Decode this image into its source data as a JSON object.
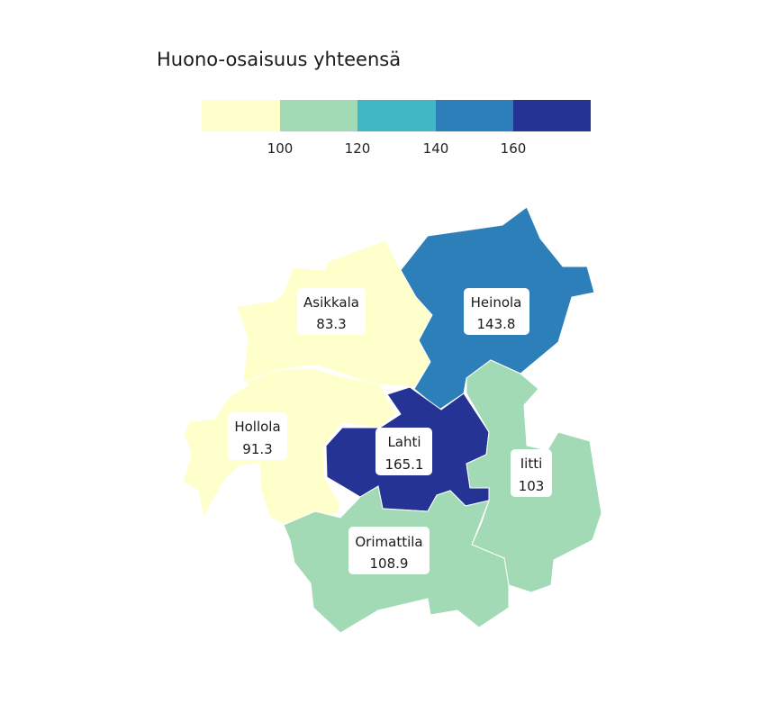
{
  "title": "Huono-osaisuus yhteensä",
  "legend": {
    "colors": [
      "#ffffcc",
      "#a1dab4",
      "#41b6c4",
      "#2c7fb8",
      "#253494"
    ],
    "ticks": [
      "100",
      "120",
      "140",
      "160"
    ]
  },
  "regions": [
    {
      "name": "Asikkala",
      "value": "83.3",
      "color": "#ffffcc"
    },
    {
      "name": "Heinola",
      "value": "143.8",
      "color": "#2c7fb8"
    },
    {
      "name": "Hollola",
      "value": "91.3",
      "color": "#ffffcc"
    },
    {
      "name": "Lahti",
      "value": "165.1",
      "color": "#253494"
    },
    {
      "name": "Iitti",
      "value": "103",
      "color": "#a1dab4"
    },
    {
      "name": "Orimattila",
      "value": "108.9",
      "color": "#a1dab4"
    }
  ]
}
